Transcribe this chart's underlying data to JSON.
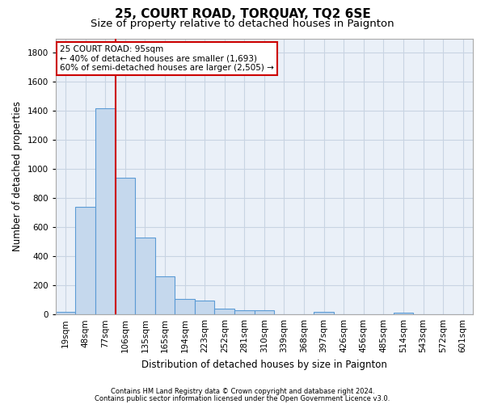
{
  "title": "25, COURT ROAD, TORQUAY, TQ2 6SE",
  "subtitle": "Size of property relative to detached houses in Paignton",
  "xlabel": "Distribution of detached houses by size in Paignton",
  "ylabel": "Number of detached properties",
  "footnote1": "Contains HM Land Registry data © Crown copyright and database right 2024.",
  "footnote2": "Contains public sector information licensed under the Open Government Licence v3.0.",
  "categories": [
    "19sqm",
    "48sqm",
    "77sqm",
    "106sqm",
    "135sqm",
    "165sqm",
    "194sqm",
    "223sqm",
    "252sqm",
    "281sqm",
    "310sqm",
    "339sqm",
    "368sqm",
    "397sqm",
    "426sqm",
    "456sqm",
    "485sqm",
    "514sqm",
    "543sqm",
    "572sqm",
    "601sqm"
  ],
  "values": [
    20,
    740,
    1420,
    940,
    530,
    265,
    105,
    95,
    40,
    28,
    28,
    0,
    0,
    15,
    0,
    0,
    0,
    12,
    0,
    0,
    0
  ],
  "bar_color": "#c5d8ed",
  "bar_edge_color": "#5b9bd5",
  "annotation_text1": "25 COURT ROAD: 95sqm",
  "annotation_text2": "← 40% of detached houses are smaller (1,693)",
  "annotation_text3": "60% of semi-detached houses are larger (2,505) →",
  "annotation_box_color": "#ffffff",
  "annotation_box_edge": "#cc0000",
  "property_line_color": "#cc0000",
  "property_line_x": 2.5,
  "ylim": [
    0,
    1900
  ],
  "yticks": [
    0,
    200,
    400,
    600,
    800,
    1000,
    1200,
    1400,
    1600,
    1800
  ],
  "bg_color": "#ffffff",
  "axes_bg_color": "#eaf0f8",
  "grid_color": "#c8d4e3",
  "title_fontsize": 11,
  "subtitle_fontsize": 9.5,
  "axis_label_fontsize": 8.5,
  "tick_fontsize": 7.5,
  "footnote_fontsize": 6.0
}
